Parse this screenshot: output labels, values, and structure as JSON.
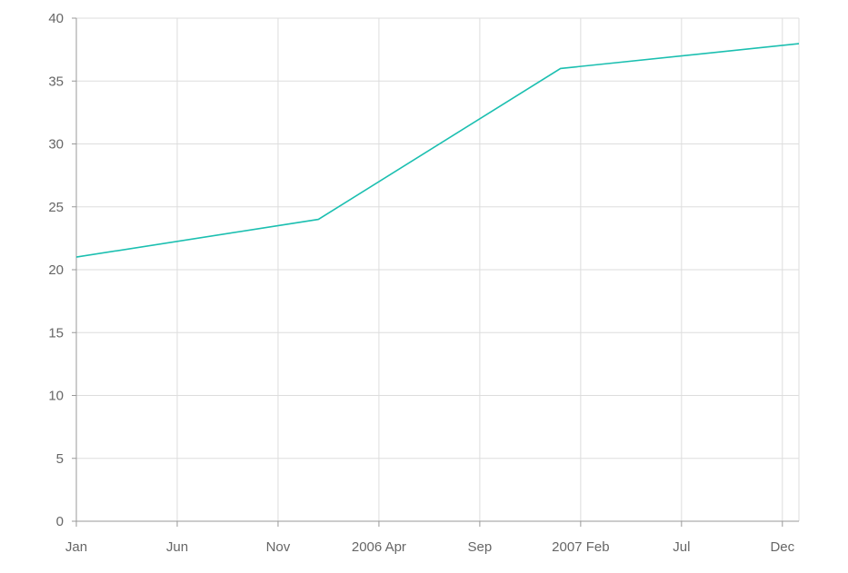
{
  "chart_data": {
    "type": "line",
    "title": "",
    "xlabel": "",
    "ylabel": "",
    "x_ticks": [
      "Jan",
      "Jun",
      "Nov",
      "2006 Apr",
      "Sep",
      "2007 Feb",
      "Jul",
      "Dec"
    ],
    "y_ticks": [
      0,
      5,
      10,
      15,
      20,
      25,
      30,
      35,
      40
    ],
    "ylim": [
      0,
      40
    ],
    "xlim": [
      "2005-01",
      "2007-12"
    ],
    "grid": true,
    "legend": "none",
    "series": [
      {
        "color": "#1bbfb0",
        "points": [
          {
            "x": "2005-01",
            "y": 21
          },
          {
            "x": "2006-01",
            "y": 24
          },
          {
            "x": "2007-01",
            "y": 36
          },
          {
            "x": "2008-01",
            "y": 38
          }
        ]
      }
    ]
  }
}
